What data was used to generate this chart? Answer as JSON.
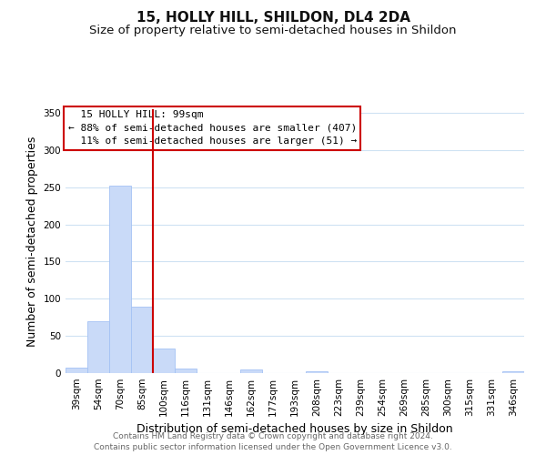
{
  "title": "15, HOLLY HILL, SHILDON, DL4 2DA",
  "subtitle": "Size of property relative to semi-detached houses in Shildon",
  "xlabel": "Distribution of semi-detached houses by size in Shildon",
  "ylabel": "Number of semi-detached properties",
  "categories": [
    "39sqm",
    "54sqm",
    "70sqm",
    "85sqm",
    "100sqm",
    "116sqm",
    "131sqm",
    "146sqm",
    "162sqm",
    "177sqm",
    "193sqm",
    "208sqm",
    "223sqm",
    "239sqm",
    "254sqm",
    "269sqm",
    "285sqm",
    "300sqm",
    "315sqm",
    "331sqm",
    "346sqm"
  ],
  "values": [
    7,
    70,
    252,
    89,
    33,
    6,
    0,
    0,
    5,
    0,
    0,
    2,
    0,
    0,
    0,
    0,
    0,
    0,
    0,
    0,
    2
  ],
  "bar_color": "#c9daf8",
  "bar_edge_color": "#a4c2f4",
  "highlight_line_color": "#cc0000",
  "highlight_line_index": 4,
  "ylim": [
    0,
    355
  ],
  "yticks": [
    0,
    50,
    100,
    150,
    200,
    250,
    300,
    350
  ],
  "annotation_title": "15 HOLLY HILL: 99sqm",
  "annotation_line1": "← 88% of semi-detached houses are smaller (407)",
  "annotation_line2": "11% of semi-detached houses are larger (51) →",
  "annotation_box_color": "#ffffff",
  "annotation_box_edge": "#cc0000",
  "footer_line1": "Contains HM Land Registry data © Crown copyright and database right 2024.",
  "footer_line2": "Contains public sector information licensed under the Open Government Licence v3.0.",
  "background_color": "#ffffff",
  "grid_color": "#cfe2f3",
  "title_fontsize": 11,
  "subtitle_fontsize": 9.5,
  "axis_label_fontsize": 9,
  "tick_fontsize": 7.5,
  "annotation_fontsize": 8,
  "footer_fontsize": 6.5
}
